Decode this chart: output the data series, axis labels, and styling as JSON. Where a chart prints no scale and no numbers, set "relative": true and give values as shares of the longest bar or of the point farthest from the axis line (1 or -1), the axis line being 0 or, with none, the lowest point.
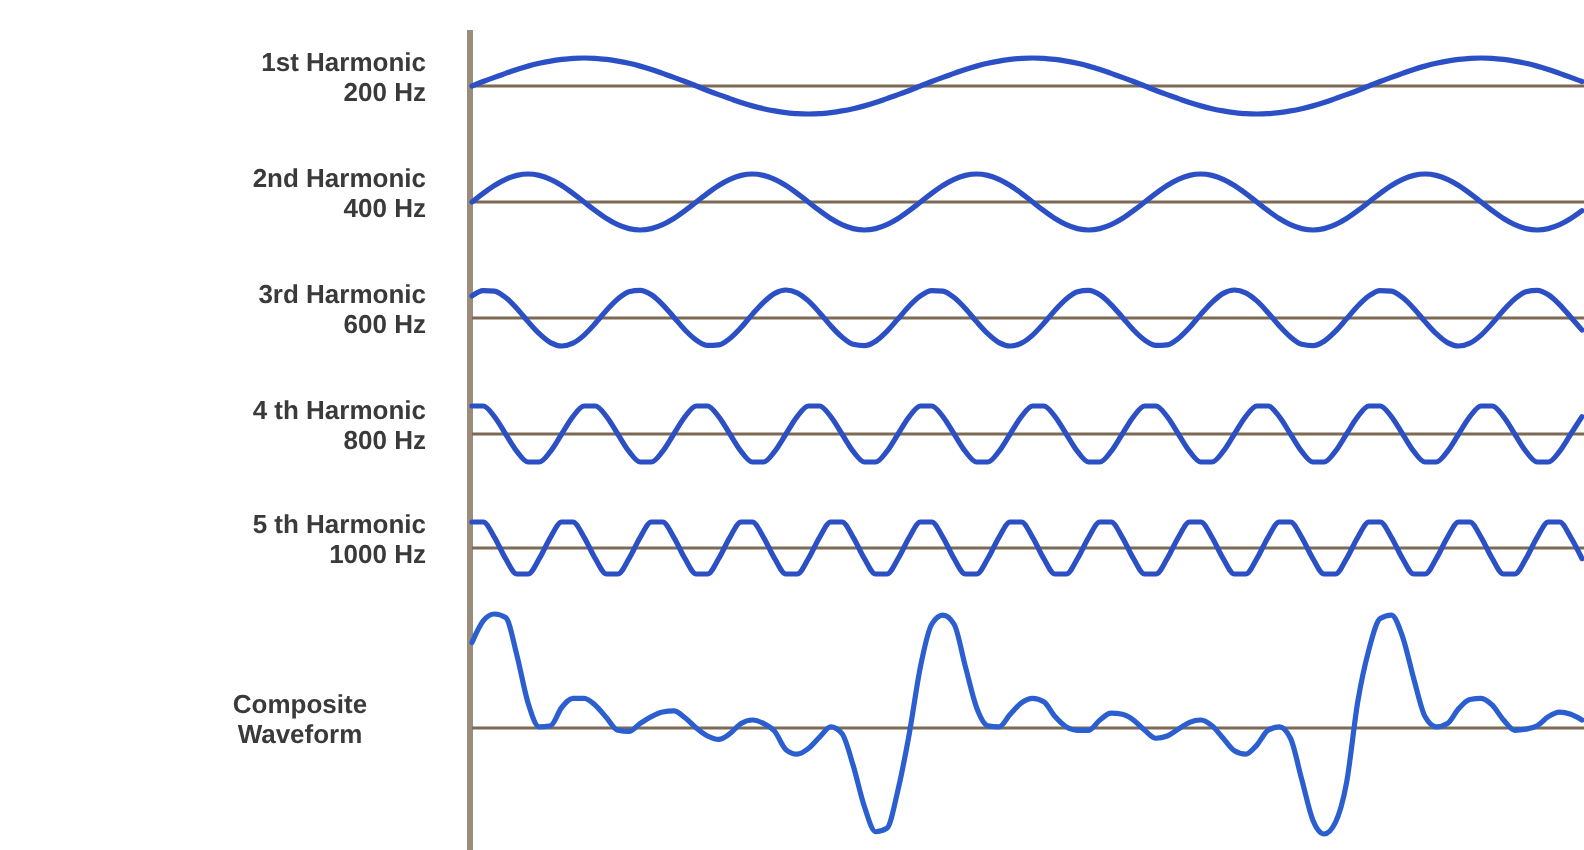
{
  "chart_data": [
    {
      "type": "line",
      "ylabel": "1st Harmonic\n200 Hz",
      "relative": true,
      "categories": [
        null,
        null,
        null,
        null,
        null,
        null,
        null,
        null,
        null,
        null,
        null,
        null,
        null,
        null,
        null,
        null,
        null,
        null,
        null,
        null,
        null,
        null,
        null,
        null,
        null,
        null,
        null,
        null,
        null,
        null,
        null,
        null,
        null,
        null,
        null,
        null,
        null,
        null,
        null,
        null,
        null,
        null,
        null,
        null,
        null,
        null,
        null,
        null,
        null,
        null,
        null,
        null,
        null,
        null,
        null,
        null,
        null,
        null,
        null,
        null,
        null,
        null,
        null,
        null,
        null,
        null,
        null,
        null,
        null,
        null,
        null,
        null,
        null,
        null,
        null,
        null,
        null,
        null,
        null,
        null,
        null,
        null,
        null,
        null,
        null,
        null,
        null,
        null,
        null,
        null,
        null,
        null,
        null,
        null,
        null,
        null,
        null,
        null,
        null,
        null
      ],
      "series": [
        {
          "color": "#2b4fc4",
          "values": [
            0,
            0.16,
            0.31,
            0.45,
            0.59,
            0.71,
            0.81,
            0.89,
            0.95,
            0.99,
            1,
            0.99,
            0.95,
            0.89,
            0.81,
            0.71,
            0.59,
            0.45,
            0.31,
            0.16,
            0,
            -0.16,
            -0.31,
            -0.45,
            -0.59,
            -0.71,
            -0.81,
            -0.89,
            -0.95,
            -0.99,
            -1,
            -0.99,
            -0.95,
            -0.89,
            -0.81,
            -0.71,
            -0.59,
            -0.45,
            -0.31,
            -0.16,
            0,
            0.16,
            0.31,
            0.45,
            0.59,
            0.71,
            0.81,
            0.89,
            0.95,
            0.99,
            1,
            0.99,
            0.95,
            0.89,
            0.81,
            0.71,
            0.59,
            0.45,
            0.31,
            0.16,
            0,
            -0.16,
            -0.31,
            -0.45,
            -0.59,
            -0.71,
            -0.81,
            -0.89,
            -0.95,
            -0.99,
            -1,
            -0.99,
            -0.95,
            -0.89,
            -0.81,
            -0.71,
            -0.59,
            -0.45,
            -0.31,
            -0.16,
            0,
            0.16,
            0.31,
            0.45,
            0.59,
            0.71,
            0.81,
            0.89,
            0.95,
            0.99,
            1,
            0.99,
            0.95,
            0.89,
            0.81,
            0.71,
            0.59,
            0.45,
            0.31,
            0.16
          ]
        }
      ]
    },
    {
      "type": "line",
      "ylabel": "2nd Harmonic\n400 Hz",
      "relative": true,
      "categories": [
        null,
        null,
        null,
        null,
        null,
        null,
        null,
        null,
        null,
        null,
        null,
        null,
        null,
        null,
        null,
        null,
        null,
        null,
        null,
        null,
        null,
        null,
        null,
        null,
        null,
        null,
        null,
        null,
        null,
        null,
        null,
        null,
        null,
        null,
        null,
        null,
        null,
        null,
        null,
        null,
        null,
        null,
        null,
        null,
        null,
        null,
        null,
        null,
        null,
        null,
        null,
        null,
        null,
        null,
        null,
        null,
        null,
        null,
        null,
        null,
        null,
        null,
        null,
        null,
        null,
        null,
        null,
        null,
        null,
        null,
        null,
        null,
        null,
        null,
        null,
        null,
        null,
        null,
        null,
        null,
        null,
        null,
        null,
        null,
        null,
        null,
        null,
        null,
        null,
        null,
        null,
        null,
        null,
        null,
        null,
        null,
        null,
        null,
        null,
        null
      ],
      "series": [
        {
          "color": "#2b4fc4",
          "values": [
            0,
            0.31,
            0.59,
            0.81,
            0.95,
            1,
            0.95,
            0.81,
            0.59,
            0.31,
            0,
            -0.31,
            -0.59,
            -0.81,
            -0.95,
            -1,
            -0.95,
            -0.81,
            -0.59,
            -0.31,
            0,
            0.31,
            0.59,
            0.81,
            0.95,
            1,
            0.95,
            0.81,
            0.59,
            0.31,
            0,
            -0.31,
            -0.59,
            -0.81,
            -0.95,
            -1,
            -0.95,
            -0.81,
            -0.59,
            -0.31,
            0,
            0.31,
            0.59,
            0.81,
            0.95,
            1,
            0.95,
            0.81,
            0.59,
            0.31,
            0,
            -0.31,
            -0.59,
            -0.81,
            -0.95,
            -1,
            -0.95,
            -0.81,
            -0.59,
            -0.31,
            0,
            0.31,
            0.59,
            0.81,
            0.95,
            1,
            0.95,
            0.81,
            0.59,
            0.31,
            0,
            -0.31,
            -0.59,
            -0.81,
            -0.95,
            -1,
            -0.95,
            -0.81,
            -0.59,
            -0.31,
            0,
            0.31,
            0.59,
            0.81,
            0.95,
            1,
            0.95,
            0.81,
            0.59,
            0.31,
            0,
            -0.31,
            -0.59,
            -0.81,
            -0.95,
            -1,
            -0.95,
            -0.81,
            -0.59,
            -0.31
          ]
        }
      ]
    },
    {
      "type": "line",
      "ylabel": "3rd Harmonic\n600 Hz",
      "relative": true,
      "categories": [
        null,
        null,
        null,
        null,
        null,
        null,
        null,
        null,
        null,
        null,
        null,
        null,
        null,
        null,
        null,
        null,
        null,
        null,
        null,
        null,
        null,
        null,
        null,
        null,
        null,
        null,
        null,
        null,
        null,
        null,
        null,
        null,
        null,
        null,
        null,
        null,
        null,
        null,
        null,
        null,
        null,
        null,
        null,
        null,
        null,
        null,
        null,
        null,
        null,
        null,
        null,
        null,
        null,
        null,
        null,
        null,
        null,
        null,
        null,
        null,
        null,
        null,
        null,
        null,
        null,
        null,
        null,
        null,
        null,
        null,
        null,
        null,
        null,
        null,
        null,
        null,
        null,
        null,
        null,
        null,
        null,
        null,
        null,
        null,
        null,
        null,
        null,
        null,
        null,
        null,
        null,
        null,
        null,
        null,
        null,
        null,
        null,
        null,
        null,
        null
      ],
      "series": [
        {
          "color": "#2b4fc4",
          "values": [
            0.79,
            0.98,
            0.96,
            0.73,
            0.34,
            -0.13,
            -0.56,
            -0.88,
            -1,
            -0.9,
            -0.61,
            -0.19,
            0.28,
            0.68,
            0.94,
            0.99,
            0.83,
            0.48,
            0.03,
            -0.43,
            -0.79,
            -0.98,
            -0.96,
            -0.73,
            -0.34,
            0.13,
            0.56,
            0.88,
            1,
            0.9,
            0.61,
            0.19,
            -0.28,
            -0.68,
            -0.94,
            -0.99,
            -0.83,
            -0.48,
            -0.03,
            0.43,
            0.79,
            0.98,
            0.96,
            0.73,
            0.34,
            -0.13,
            -0.56,
            -0.88,
            -1,
            -0.9,
            -0.61,
            -0.19,
            0.28,
            0.68,
            0.94,
            0.99,
            0.83,
            0.48,
            0.03,
            -0.43,
            -0.79,
            -0.98,
            -0.96,
            -0.73,
            -0.34,
            0.13,
            0.56,
            0.88,
            1,
            0.9,
            0.61,
            0.19,
            -0.28,
            -0.68,
            -0.94,
            -0.99,
            -0.83,
            -0.48,
            -0.03,
            0.43,
            0.79,
            0.98,
            0.96,
            0.73,
            0.34,
            -0.13,
            -0.56,
            -0.88,
            -1,
            -0.9,
            -0.61,
            -0.19,
            0.28,
            0.68,
            0.94,
            0.99,
            0.83,
            0.48,
            0.03,
            -0.43
          ]
        }
      ]
    },
    {
      "type": "line",
      "ylabel": "4 th Harmonic\n800 Hz",
      "relative": true,
      "categories": [
        null,
        null,
        null,
        null,
        null,
        null,
        null,
        null,
        null,
        null,
        null,
        null,
        null,
        null,
        null,
        null,
        null,
        null,
        null,
        null,
        null,
        null,
        null,
        null,
        null,
        null,
        null,
        null,
        null,
        null,
        null,
        null,
        null,
        null,
        null,
        null,
        null,
        null,
        null,
        null,
        null,
        null,
        null,
        null,
        null,
        null,
        null,
        null,
        null,
        null,
        null,
        null,
        null,
        null,
        null,
        null,
        null,
        null,
        null,
        null,
        null,
        null,
        null,
        null,
        null,
        null,
        null,
        null,
        null,
        null,
        null,
        null,
        null,
        null,
        null,
        null,
        null,
        null,
        null,
        null,
        null,
        null,
        null,
        null,
        null,
        null,
        null,
        null,
        null,
        null,
        null,
        null,
        null,
        null,
        null,
        null,
        null,
        null,
        null,
        null
      ],
      "series": [
        {
          "color": "#2b4fc4",
          "values": [
            1,
            1,
            0.62,
            0,
            -0.62,
            -1,
            -1,
            -0.62,
            0,
            0.62,
            1,
            1,
            0.62,
            0,
            -0.62,
            -1,
            -1,
            -0.62,
            0,
            0.62,
            1,
            1,
            0.62,
            0,
            -0.62,
            -1,
            -1,
            -0.62,
            0,
            0.62,
            1,
            1,
            0.62,
            0,
            -0.62,
            -1,
            -1,
            -0.62,
            0,
            0.62,
            1,
            1,
            0.62,
            0,
            -0.62,
            -1,
            -1,
            -0.62,
            0,
            0.62,
            1,
            1,
            0.62,
            0,
            -0.62,
            -1,
            -1,
            -0.62,
            0,
            0.62,
            1,
            1,
            0.62,
            0,
            -0.62,
            -1,
            -1,
            -0.62,
            0,
            0.62,
            1,
            1,
            0.62,
            0,
            -0.62,
            -1,
            -1,
            -0.62,
            0,
            0.62,
            1,
            1,
            0.62,
            0,
            -0.62,
            -1,
            -1,
            -0.62,
            0,
            0.62,
            1,
            1,
            0.62,
            0,
            -0.62,
            -1,
            -1,
            -0.62,
            0,
            0.62
          ]
        }
      ]
    },
    {
      "type": "line",
      "ylabel": "5 th Harmonic\n1000 Hz",
      "relative": true,
      "categories": [
        null,
        null,
        null,
        null,
        null,
        null,
        null,
        null,
        null,
        null,
        null,
        null,
        null,
        null,
        null,
        null,
        null,
        null,
        null,
        null,
        null,
        null,
        null,
        null,
        null,
        null,
        null,
        null,
        null,
        null,
        null,
        null,
        null,
        null,
        null,
        null,
        null,
        null,
        null,
        null,
        null,
        null,
        null,
        null,
        null,
        null,
        null,
        null,
        null,
        null,
        null,
        null,
        null,
        null,
        null,
        null,
        null,
        null,
        null,
        null,
        null,
        null,
        null,
        null,
        null,
        null,
        null,
        null,
        null,
        null,
        null,
        null,
        null,
        null,
        null,
        null,
        null,
        null,
        null,
        null,
        null,
        null,
        null,
        null,
        null,
        null,
        null,
        null,
        null,
        null,
        null,
        null,
        null,
        null,
        null,
        null,
        null,
        null,
        null,
        null
      ],
      "series": [
        {
          "color": "#2b4fc4",
          "values": [
            1,
            1,
            0.41,
            -0.41,
            -1,
            -1,
            -0.41,
            0.41,
            1,
            1,
            0.41,
            -0.41,
            -1,
            -1,
            -0.41,
            0.41,
            1,
            1,
            0.41,
            -0.41,
            -1,
            -1,
            -0.41,
            0.41,
            1,
            1,
            0.41,
            -0.41,
            -1,
            -1,
            -0.41,
            0.41,
            1,
            1,
            0.41,
            -0.41,
            -1,
            -1,
            -0.41,
            0.41,
            1,
            1,
            0.41,
            -0.41,
            -1,
            -1,
            -0.41,
            0.41,
            1,
            1,
            0.41,
            -0.41,
            -1,
            -1,
            -0.41,
            0.41,
            1,
            1,
            0.41,
            -0.41,
            -1,
            -1,
            -0.41,
            0.41,
            1,
            1,
            0.41,
            -0.41,
            -1,
            -1,
            -0.41,
            0.41,
            1,
            1,
            0.41,
            -0.41,
            -1,
            -1,
            -0.41,
            0.41,
            1,
            1,
            0.41,
            -0.41,
            -1,
            -1,
            -0.41,
            0.41,
            1,
            1,
            0.41,
            -0.41,
            -1,
            -1,
            -0.41,
            0.41,
            1,
            1,
            0.41,
            -0.41
          ]
        }
      ]
    },
    {
      "type": "line",
      "ylabel": "Composite\nWaveform",
      "relative": true,
      "categories": [
        null,
        null,
        null,
        null,
        null,
        null,
        null,
        null,
        null,
        null,
        null,
        null,
        null,
        null,
        null,
        null,
        null,
        null,
        null,
        null,
        null,
        null,
        null,
        null,
        null,
        null,
        null,
        null,
        null,
        null,
        null,
        null,
        null,
        null,
        null,
        null,
        null,
        null,
        null,
        null,
        null,
        null,
        null,
        null,
        null,
        null,
        null,
        null,
        null,
        null,
        null,
        null,
        null,
        null,
        null,
        null,
        null,
        null,
        null,
        null,
        null,
        null,
        null,
        null,
        null,
        null,
        null,
        null,
        null,
        null,
        null,
        null,
        null,
        null,
        null,
        null,
        null,
        null,
        null,
        null,
        null,
        null,
        null,
        null,
        null,
        null,
        null,
        null,
        null,
        null,
        null,
        null,
        null,
        null,
        null,
        null,
        null,
        null,
        null,
        null
      ],
      "series": [
        {
          "color": "#2b5fd0",
          "values": [
            0.75,
            0.94,
            1,
            0.97,
            0.64,
            0.22,
            0.01,
            0.02,
            0.18,
            0.26,
            0.26,
            0.2,
            0.09,
            -0.02,
            -0.03,
            0.04,
            0.1,
            0.14,
            0.15,
            0.09,
            0,
            -0.07,
            -0.1,
            -0.05,
            0.04,
            0.07,
            0.04,
            -0.03,
            -0.19,
            -0.23,
            -0.18,
            -0.08,
            0.01,
            -0.05,
            -0.33,
            -0.69,
            -0.91,
            -0.88,
            -0.54,
            -0.05,
            0.54,
            0.91,
            0.99,
            0.91,
            0.54,
            0.18,
            0.02,
            0.01,
            0.12,
            0.22,
            0.26,
            0.23,
            0.1,
            0.01,
            -0.02,
            -0.02,
            0.07,
            0.13,
            0.12,
            0.07,
            -0.02,
            -0.09,
            -0.07,
            -0.01,
            0.05,
            0.07,
            0.02,
            -0.09,
            -0.2,
            -0.23,
            -0.15,
            -0.02,
            0.01,
            -0.09,
            -0.45,
            -0.81,
            -0.93,
            -0.83,
            -0.48,
            0.23,
            0.69,
            0.96,
            0.99,
            0.8,
            0.43,
            0.1,
            0.01,
            0.04,
            0.17,
            0.25,
            0.26,
            0.2,
            0.07,
            -0.02,
            -0.01,
            0.02,
            0.1,
            0.14,
            0.12,
            0.07
          ]
        }
      ]
    }
  ]
}
